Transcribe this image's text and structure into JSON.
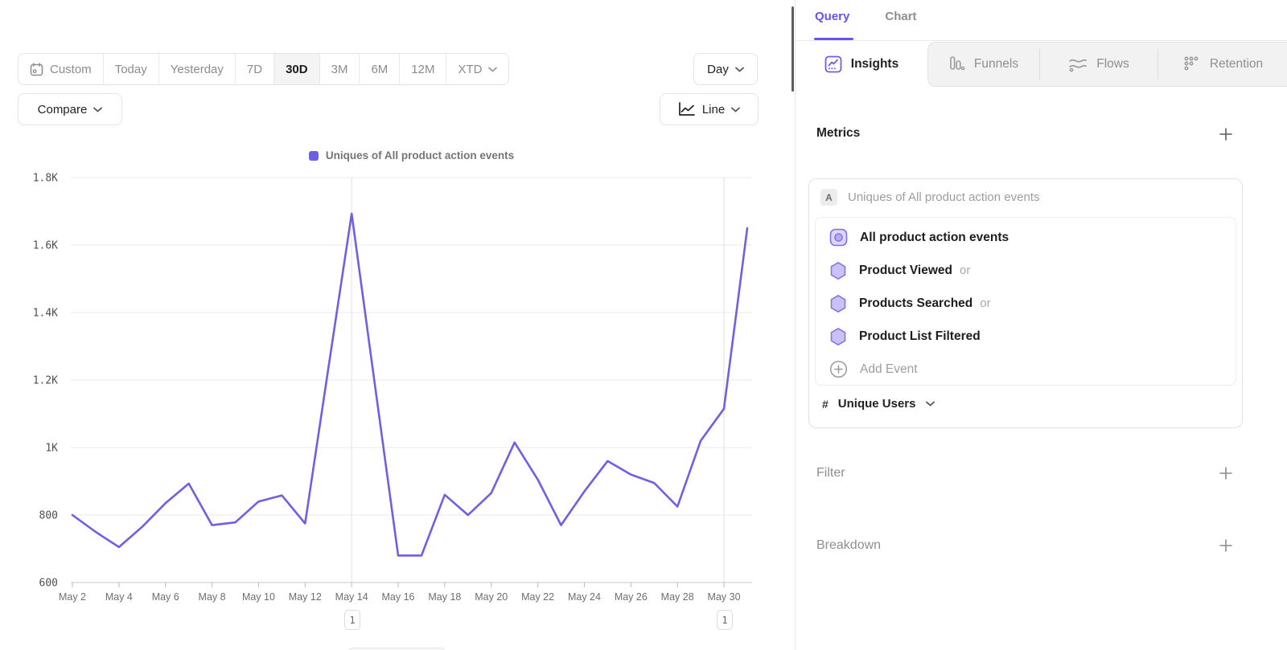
{
  "toolbar": {
    "date_ranges": [
      {
        "label": "Custom"
      },
      {
        "label": "Today"
      },
      {
        "label": "Yesterday"
      },
      {
        "label": "7D"
      },
      {
        "label": "30D",
        "active": true
      },
      {
        "label": "3M"
      },
      {
        "label": "6M"
      },
      {
        "label": "12M"
      },
      {
        "label": "XTD"
      }
    ],
    "compare_label": "Compare",
    "granularity_label": "Day",
    "chart_type_label": "Line"
  },
  "legend": {
    "label": "Uniques of All product action events"
  },
  "chart_data": {
    "type": "line",
    "title": "Uniques of All product action events",
    "categories": [
      "May 2",
      "May 3",
      "May 4",
      "May 5",
      "May 6",
      "May 7",
      "May 8",
      "May 9",
      "May 10",
      "May 11",
      "May 12",
      "May 13",
      "May 14",
      "May 15",
      "May 16",
      "May 17",
      "May 18",
      "May 19",
      "May 20",
      "May 21",
      "May 22",
      "May 23",
      "May 24",
      "May 25",
      "May 26",
      "May 27",
      "May 28",
      "May 29",
      "May 30",
      "May 31"
    ],
    "values": [
      800,
      750,
      705,
      765,
      835,
      893,
      770,
      778,
      840,
      858,
      775,
      1235,
      1693,
      1185,
      680,
      680,
      860,
      800,
      865,
      1015,
      905,
      770,
      870,
      960,
      920,
      895,
      825,
      1020,
      1115,
      1650
    ],
    "series_name": "Uniques of All product action events",
    "line_color": "#6f5fe6",
    "ylim": [
      600,
      1800
    ],
    "y_ticks": [
      {
        "value": 1800,
        "label": "1.8K"
      },
      {
        "value": 1600,
        "label": "1.6K"
      },
      {
        "value": 1400,
        "label": "1.4K"
      },
      {
        "value": 1200,
        "label": "1.2K"
      },
      {
        "value": 1000,
        "label": "1K"
      },
      {
        "value": 800,
        "label": "800"
      },
      {
        "value": 600,
        "label": "600"
      }
    ],
    "x_tick_every": 2,
    "annotation_indices": [
      12,
      28
    ],
    "grid": true,
    "legend_position": "top-center"
  },
  "annotations": [
    {
      "label": "1"
    },
    {
      "label": "1"
    }
  ],
  "panel": {
    "top_tabs": [
      {
        "label": "Query",
        "active": true
      },
      {
        "label": "Chart",
        "active": false
      }
    ],
    "report_tabs": [
      {
        "label": "Insights",
        "active": true
      },
      {
        "label": "Funnels",
        "active": false
      },
      {
        "label": "Flows",
        "active": false
      },
      {
        "label": "Retention",
        "active": false
      }
    ],
    "metrics": {
      "title": "Metrics",
      "series_badge": "A",
      "series_label": "Uniques of All product action events",
      "events": [
        {
          "label": "All product action events",
          "suffix": ""
        },
        {
          "label": "Product Viewed",
          "suffix": "or"
        },
        {
          "label": "Products Searched",
          "suffix": "or"
        },
        {
          "label": "Product List Filtered",
          "suffix": ""
        }
      ],
      "add_event_label": "Add Event",
      "measurement": {
        "prefix": "#",
        "label": "Unique Users"
      }
    },
    "filter": {
      "title": "Filter"
    },
    "breakdown": {
      "title": "Breakdown"
    }
  },
  "colors": {
    "accent_purple": "#6f5fe6",
    "line_purple": "#6f5fe6",
    "tab_gray_bg": "#f2f2f2",
    "hex_fill": "#c9c2f4",
    "hex_stroke": "#8476ea"
  }
}
